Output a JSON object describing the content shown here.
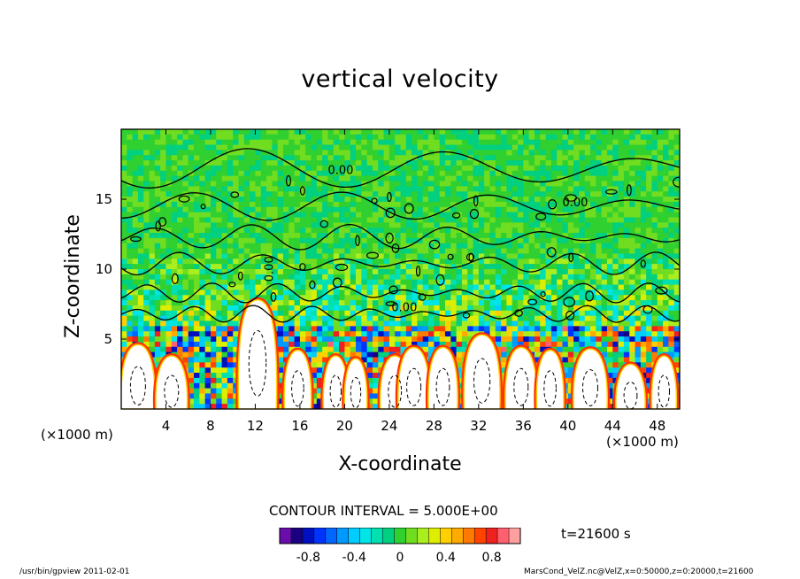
{
  "chart_data": {
    "type": "heatmap",
    "title": "vertical velocity",
    "xlabel": "X-coordinate",
    "ylabel": "Z-coordinate",
    "x_unit": "(×1000 m)",
    "xlim": [
      0,
      50
    ],
    "ylim": [
      0,
      20
    ],
    "x_ticks": [
      4,
      8,
      12,
      16,
      20,
      24,
      28,
      32,
      36,
      40,
      44,
      48
    ],
    "y_ticks": [
      5,
      10,
      15
    ],
    "contour_interval": "CONTOUR INTERVAL = 5.000E+00",
    "contour_labels": [
      "0.00",
      "0.00",
      "0.00",
      "0.00"
    ],
    "time": "t=21600 s",
    "colorbar": {
      "colors": [
        "#6a0dad",
        "#1a0080",
        "#0010c0",
        "#0033ff",
        "#0066ff",
        "#0099ff",
        "#00ccff",
        "#00e5e5",
        "#00e0b0",
        "#00d080",
        "#30d030",
        "#70dd20",
        "#aaee20",
        "#ddee00",
        "#ffd000",
        "#ffaa00",
        "#ff7a00",
        "#ff4400",
        "#ee2020",
        "#ff6070",
        "#ffa0a0"
      ],
      "tick_labels": [
        "-0.8",
        "-0.4",
        "0",
        "0.4",
        "0.8"
      ],
      "tick_values": [
        -0.8,
        -0.4,
        0,
        0.4,
        0.8
      ],
      "range": [
        -1.05,
        1.05
      ]
    },
    "footer_left": "/usr/bin/gpview   2011-02-01",
    "footer_right": "MarsCond_VelZ.nc@VelZ,x=0:50000,z=0:20000,t=21600"
  }
}
